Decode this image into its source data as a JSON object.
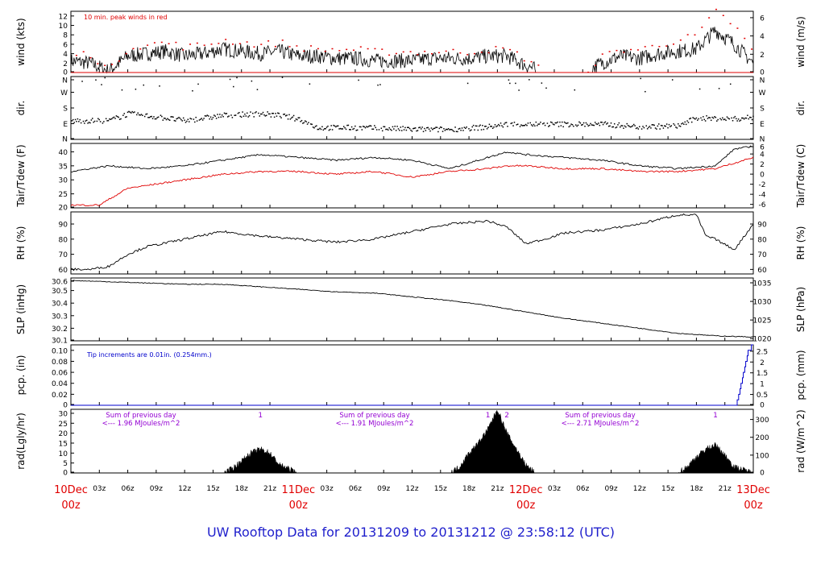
{
  "title": "UW Rooftop Data for 20131209  to  20131212 @ 23:58:12  (UTC)",
  "colors": {
    "red": "#e00000",
    "blue": "#0000cc",
    "purple": "#9400d3",
    "black": "#000000"
  },
  "time_axis": {
    "hours_total": 72,
    "tick_labels": [
      "03z",
      "06z",
      "09z",
      "12z",
      "15z",
      "18z",
      "21z",
      "03z",
      "06z",
      "09z",
      "12z",
      "15z",
      "18z",
      "21z",
      "03z",
      "06z",
      "09z",
      "12z",
      "15z",
      "18z",
      "21z"
    ],
    "tick_hours": [
      3,
      6,
      9,
      12,
      15,
      18,
      21,
      27,
      30,
      33,
      36,
      39,
      42,
      45,
      51,
      54,
      57,
      60,
      63,
      66,
      69
    ],
    "day_labels": [
      {
        "hour": 0,
        "date": "10Dec",
        "time": "00z"
      },
      {
        "hour": 24,
        "date": "11Dec",
        "time": "00z"
      },
      {
        "hour": 48,
        "date": "12Dec",
        "time": "00z"
      },
      {
        "hour": 72,
        "date": "13Dec",
        "time": "00z"
      }
    ]
  },
  "panels": {
    "wind": {
      "left_label": "wind (kts)",
      "right_label": "wind (m/s)",
      "note": "10 min. peak winds in red",
      "ylim": [
        0,
        13
      ],
      "left_ticks": [
        "0",
        "2",
        "4",
        "6",
        "8",
        "10",
        "12"
      ],
      "right_ticks": [
        "0",
        "2",
        "4",
        "6"
      ]
    },
    "dir": {
      "left_label": "dir.",
      "right_label": "dir.",
      "ticks": [
        "N",
        "E",
        "S",
        "W",
        "N"
      ]
    },
    "temp": {
      "left_label": "Tair/Tdew (F)",
      "right_label": "Tair/Tdew (C)",
      "ylim": [
        20,
        43
      ],
      "left_ticks": [
        "20",
        "25",
        "30",
        "35",
        "40"
      ],
      "right_ticks": [
        "-6",
        "-4",
        "-2",
        "0",
        "2",
        "4",
        "6"
      ]
    },
    "rh": {
      "left_label": "RH (%)",
      "right_label": "RH (%)",
      "ylim": [
        57,
        98
      ],
      "ticks": [
        "60",
        "70",
        "80",
        "90"
      ]
    },
    "slp": {
      "left_label": "SLP (inHg)",
      "right_label": "SLP (hPa)",
      "ylim": [
        30.1,
        30.6
      ],
      "left_ticks": [
        "30.1",
        "30.2",
        "30.3",
        "30.4",
        "30.5",
        "30.6"
      ],
      "right_ticks": [
        "1020",
        "1025",
        "1030",
        "1035"
      ]
    },
    "pcp": {
      "left_label": "pcp. (in)",
      "right_label": "pcp. (mm)",
      "note": "Tip increments are 0.01in. (0.254mm.)",
      "ylim": [
        0,
        0.11
      ],
      "left_ticks": [
        "0",
        "0.02",
        "0.04",
        "0.06",
        "0.08",
        "0.10"
      ],
      "right_ticks": [
        "0",
        "0.5",
        "1",
        "1.5",
        "2",
        "2.5"
      ]
    },
    "rad": {
      "left_label": "rad(Lgly/hr)",
      "right_label": "rad (W/m^2)",
      "ylim": [
        0,
        32
      ],
      "left_ticks": [
        "0",
        "5",
        "10",
        "15",
        "20",
        "25",
        "30"
      ],
      "right_ticks": [
        "0",
        "100",
        "200",
        "300"
      ],
      "annotations": [
        {
          "line1": "Sum of previous day",
          "line2": "<--- 1.96 MJoules/m^2"
        },
        {
          "line1": "Sum of previous day",
          "line2": "<--- 1.91 MJoules/m^2"
        },
        {
          "line1": "Sum of previous day",
          "line2": "<--- 2.71 MJoules/m^2"
        }
      ],
      "markers": [
        {
          "hour": 20,
          "text": "1"
        },
        {
          "hour": 44,
          "text": "1"
        },
        {
          "hour": 46,
          "text": "2"
        },
        {
          "hour": 68,
          "text": "1"
        }
      ]
    }
  },
  "chart_data": [
    {
      "type": "line",
      "ylabel": "wind (kts)",
      "ylim": [
        0,
        13
      ],
      "series": [
        {
          "x": [
            0,
            2,
            4,
            6,
            8,
            10,
            12,
            14,
            16,
            18,
            20,
            22,
            24,
            26,
            28,
            30,
            32,
            34,
            36,
            38,
            40,
            42,
            44,
            46,
            48,
            50,
            52,
            54,
            56,
            58,
            60,
            62,
            64,
            66,
            68,
            70,
            72
          ],
          "values": [
            2.5,
            2,
            0.3,
            3.5,
            4,
            4.5,
            3.5,
            4,
            5,
            4.5,
            4,
            4.5,
            3.5,
            3.5,
            3,
            3,
            2.5,
            2.5,
            2.5,
            3,
            3,
            3,
            3.5,
            3.5,
            1.5,
            0,
            0,
            0,
            2,
            3.5,
            3,
            4,
            4.5,
            5,
            9,
            6,
            2
          ]
        },
        {
          "name": "10 min. peak winds in red",
          "x": [
            0,
            2,
            4,
            6,
            8,
            10,
            12,
            14,
            16,
            18,
            20,
            22,
            24,
            26,
            28,
            30,
            32,
            34,
            36,
            38,
            40,
            42,
            44,
            46,
            48,
            50,
            52,
            54,
            56,
            58,
            60,
            62,
            64,
            66,
            68,
            70,
            72
          ],
          "values": [
            4,
            4,
            0.5,
            5.5,
            6,
            6.5,
            5.5,
            6,
            7,
            6.5,
            6,
            6.5,
            5.5,
            5,
            5,
            5,
            4.5,
            4.5,
            4.5,
            4.5,
            4.5,
            4.5,
            5,
            5,
            3,
            0,
            0,
            0,
            3.5,
            5,
            5,
            6,
            7,
            8,
            13,
            10,
            4
          ]
        }
      ]
    },
    {
      "type": "scatter",
      "ylabel": "dir.",
      "ylim": [
        0,
        360
      ],
      "series": [
        {
          "x": [
            0,
            4,
            6,
            10,
            12,
            16,
            20,
            22,
            24,
            26,
            30,
            34,
            36,
            40,
            44,
            46,
            48,
            52,
            56,
            60,
            64,
            66,
            70,
            72
          ],
          "values": [
            110,
            110,
            150,
            125,
            110,
            140,
            150,
            140,
            120,
            70,
            70,
            65,
            60,
            60,
            75,
            90,
            90,
            90,
            90,
            75,
            80,
            125,
            120,
            130
          ]
        }
      ]
    },
    {
      "type": "line",
      "ylabel": "Tair/Tdew (F)",
      "ylim": [
        20,
        43
      ],
      "series": [
        {
          "x": [
            0,
            4,
            8,
            12,
            16,
            20,
            24,
            28,
            32,
            36,
            40,
            44,
            46,
            48,
            52,
            56,
            60,
            64,
            68,
            70,
            72
          ],
          "values": [
            33,
            35,
            34,
            35,
            37,
            39,
            38,
            37,
            38,
            37,
            34,
            38,
            40,
            39,
            38,
            37,
            35,
            34,
            35,
            41,
            42
          ]
        },
        {
          "x": [
            0,
            3,
            4,
            6,
            8,
            12,
            16,
            20,
            24,
            28,
            32,
            36,
            40,
            44,
            46,
            48,
            52,
            56,
            60,
            64,
            68,
            70,
            72
          ],
          "values": [
            21,
            21,
            23,
            27,
            28,
            30,
            32,
            33,
            33,
            32,
            33,
            31,
            33,
            34,
            35,
            35,
            34,
            34,
            33,
            33,
            34,
            36,
            38
          ]
        }
      ]
    },
    {
      "type": "line",
      "ylabel": "RH (%)",
      "ylim": [
        57,
        98
      ],
      "series": [
        {
          "x": [
            0,
            2,
            4,
            6,
            8,
            12,
            16,
            20,
            24,
            28,
            32,
            36,
            40,
            44,
            46,
            48,
            50,
            52,
            56,
            60,
            64,
            66,
            67,
            68,
            70,
            72
          ],
          "values": [
            60,
            60,
            62,
            70,
            75,
            80,
            85,
            82,
            80,
            78,
            80,
            85,
            90,
            92,
            88,
            77,
            80,
            84,
            86,
            90,
            96,
            96,
            82,
            80,
            73,
            90
          ]
        }
      ]
    },
    {
      "type": "line",
      "ylabel": "SLP (inHg)",
      "ylim": [
        30.1,
        30.6
      ],
      "series": [
        {
          "x": [
            0,
            4,
            8,
            12,
            16,
            20,
            24,
            28,
            32,
            36,
            40,
            44,
            48,
            52,
            56,
            60,
            64,
            68,
            72
          ],
          "values": [
            30.58,
            30.57,
            30.56,
            30.55,
            30.55,
            30.53,
            30.51,
            30.49,
            30.48,
            30.45,
            30.42,
            30.38,
            30.33,
            30.28,
            30.24,
            30.2,
            30.16,
            30.14,
            30.13
          ]
        }
      ]
    },
    {
      "type": "line",
      "ylabel": "pcp. (in)",
      "ylim": [
        0,
        0.11
      ],
      "series": [
        {
          "x": [
            0,
            70.2,
            70.5,
            71,
            71.5,
            72
          ],
          "values": [
            0,
            0,
            0.02,
            0.06,
            0.1,
            0.11
          ]
        }
      ]
    },
    {
      "type": "area",
      "ylabel": "rad(Lgly/hr)",
      "ylim": [
        0,
        32
      ],
      "series": [
        {
          "x": [
            0,
            16,
            17,
            18,
            19,
            20,
            21,
            22,
            24,
            40,
            41,
            42,
            43,
            44,
            45,
            46,
            47,
            48,
            49,
            64,
            65,
            66,
            67,
            68,
            69,
            70,
            72
          ],
          "values": [
            0,
            0,
            2,
            6,
            10,
            12,
            10,
            4,
            0,
            0,
            3,
            10,
            15,
            22,
            32,
            20,
            12,
            4,
            0,
            0,
            3,
            8,
            12,
            14,
            9,
            3,
            0
          ]
        }
      ]
    }
  ]
}
